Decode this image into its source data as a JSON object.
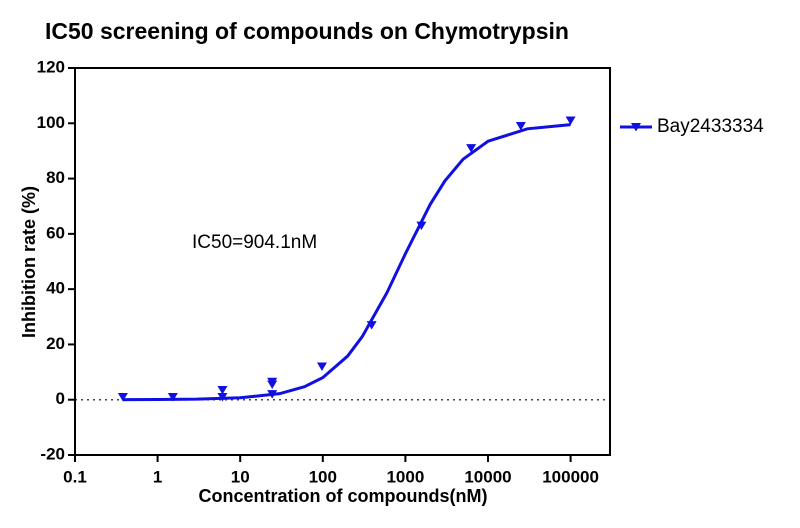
{
  "chart_data": {
    "type": "scatter",
    "title": "IC50 screening of compounds on Chymotrypsin",
    "x_label": "Concentration of compounds(nM)",
    "y_label": "Inhibition rate (%)",
    "annotation": "IC50=904.1nM",
    "x_scale": "log",
    "xlim": [
      0.1,
      300000
    ],
    "xticks": [
      0.1,
      1,
      10,
      100,
      1000,
      10000,
      100000
    ],
    "ylim": [
      -20,
      120
    ],
    "yticks": [
      -20,
      0,
      20,
      40,
      60,
      80,
      100,
      120
    ],
    "zero_line": true,
    "frame": true,
    "legend": "right",
    "series": [
      {
        "name": "Bay2433334",
        "color": "#1010e0",
        "marker": "triangle-down",
        "x": [
          0.38,
          1.53,
          6.1,
          6.1,
          24.4,
          24.4,
          24.4,
          97.7,
          390.6,
          1562.5,
          6250,
          25000,
          100000
        ],
        "values": [
          1,
          1,
          3.5,
          1,
          6.5,
          5.5,
          2,
          12,
          27,
          63,
          91,
          99,
          101
        ],
        "fit": {
          "x": [
            0.38,
            1,
            3,
            10,
            30,
            60,
            100,
            200,
            300,
            600,
            1000,
            2000,
            3000,
            5000,
            10000,
            30000,
            100000
          ],
          "values": [
            0,
            0.1,
            0.2,
            0.7,
            2.2,
            4.7,
            8,
            15.8,
            22.8,
            38.8,
            52.8,
            70.7,
            79.1,
            87.0,
            93.5,
            98.0,
            99.5
          ]
        }
      }
    ]
  }
}
